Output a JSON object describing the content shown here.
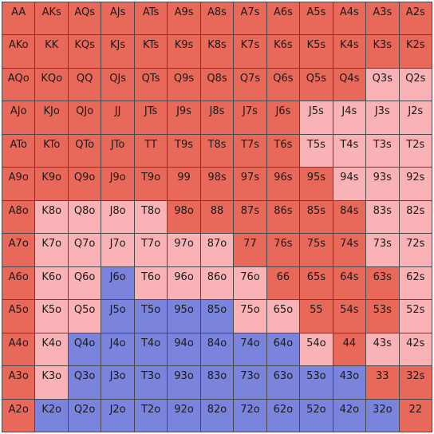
{
  "colors": {
    "R": "#e8695a",
    "P": "#f9b3b6",
    "B": "#7b84dc"
  },
  "grid": [
    [
      "AA",
      "AKs",
      "AQs",
      "AJs",
      "ATs",
      "A9s",
      "A8s",
      "A7s",
      "A6s",
      "A5s",
      "A4s",
      "A3s",
      "A2s"
    ],
    [
      "AKo",
      "KK",
      "KQs",
      "KJs",
      "KTs",
      "K9s",
      "K8s",
      "K7s",
      "K6s",
      "K5s",
      "K4s",
      "K3s",
      "K2s"
    ],
    [
      "AQo",
      "KQo",
      "QQ",
      "QJs",
      "QTs",
      "Q9s",
      "Q8s",
      "Q7s",
      "Q6s",
      "Q5s",
      "Q4s",
      "Q3s",
      "Q2s"
    ],
    [
      "AJo",
      "KJo",
      "QJo",
      "JJ",
      "JTs",
      "J9s",
      "J8s",
      "J7s",
      "J6s",
      "J5s",
      "J4s",
      "J3s",
      "J2s"
    ],
    [
      "ATo",
      "KTo",
      "QTo",
      "JTo",
      "TT",
      "T9s",
      "T8s",
      "T7s",
      "T6s",
      "T5s",
      "T4s",
      "T3s",
      "T2s"
    ],
    [
      "A9o",
      "K9o",
      "Q9o",
      "J9o",
      "T9o",
      "99",
      "98s",
      "97s",
      "96s",
      "95s",
      "94s",
      "93s",
      "92s"
    ],
    [
      "A8o",
      "K8o",
      "Q8o",
      "J8o",
      "T8o",
      "98o",
      "88",
      "87s",
      "86s",
      "85s",
      "84s",
      "83s",
      "82s"
    ],
    [
      "A7o",
      "K7o",
      "Q7o",
      "J7o",
      "T7o",
      "97o",
      "87o",
      "77",
      "76s",
      "75s",
      "74s",
      "73s",
      "72s"
    ],
    [
      "A6o",
      "K6o",
      "Q6o",
      "J6o",
      "T6o",
      "96o",
      "86o",
      "76o",
      "66",
      "65s",
      "64s",
      "63s",
      "62s"
    ],
    [
      "A5o",
      "K5o",
      "Q5o",
      "J5o",
      "T5o",
      "95o",
      "85o",
      "75o",
      "65o",
      "55",
      "54s",
      "53s",
      "52s"
    ],
    [
      "A4o",
      "K4o",
      "Q4o",
      "J4o",
      "T4o",
      "94o",
      "84o",
      "74o",
      "64o",
      "54o",
      "44",
      "43s",
      "42s"
    ],
    [
      "A3o",
      "K3o",
      "Q3o",
      "J3o",
      "T3o",
      "93o",
      "83o",
      "73o",
      "63o",
      "53o",
      "43o",
      "33",
      "32s"
    ],
    [
      "A2o",
      "K2o",
      "Q2o",
      "J2o",
      "T2o",
      "92o",
      "82o",
      "72o",
      "62o",
      "52o",
      "42o",
      "32o",
      "22"
    ]
  ],
  "cell_colors": [
    "RRRRRRRRRRRRR",
    "RRRRRRRRRRRRR",
    "RRRRRRRRRRRPP",
    "RRRRRRRRRPPPP",
    "RRRRRRRRRPPPP",
    "RRRRRRRRRRPPP",
    "RPPPPRRRRRRPP",
    "RPPPPPPRRRRPP",
    "RPPBPPPPRRRRP",
    "RPPBBBBPPRRRP",
    "RPBBBBBBBPRPP",
    "RPBBBBBBBBBRR",
    "RBBBBBBBBBBBR"
  ]
}
